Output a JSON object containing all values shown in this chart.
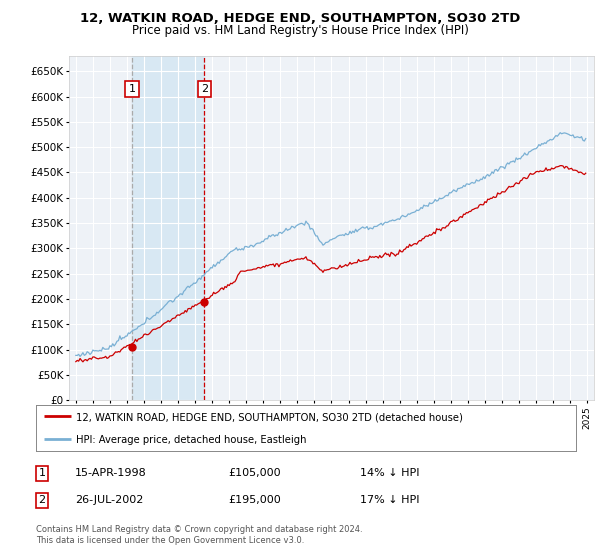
{
  "title": "12, WATKIN ROAD, HEDGE END, SOUTHAMPTON, SO30 2TD",
  "subtitle": "Price paid vs. HM Land Registry's House Price Index (HPI)",
  "legend_line1": "12, WATKIN ROAD, HEDGE END, SOUTHAMPTON, SO30 2TD (detached house)",
  "legend_line2": "HPI: Average price, detached house, Eastleigh",
  "transaction1_date": "15-APR-1998",
  "transaction1_price": 105000,
  "transaction1_hpi": "14% ↓ HPI",
  "transaction2_date": "26-JUL-2002",
  "transaction2_price": 195000,
  "transaction2_hpi": "17% ↓ HPI",
  "footnote1": "Contains HM Land Registry data © Crown copyright and database right 2024.",
  "footnote2": "This data is licensed under the Open Government Licence v3.0.",
  "ylim": [
    0,
    680000
  ],
  "yticks": [
    0,
    50000,
    100000,
    150000,
    200000,
    250000,
    300000,
    350000,
    400000,
    450000,
    500000,
    550000,
    600000,
    650000
  ],
  "price_color": "#cc0000",
  "hpi_color": "#7ab0d4",
  "bg_color": "#eef2f7",
  "highlight_color": "#d8e8f3",
  "grid_color": "#ffffff",
  "vline1_color": "#aaaaaa",
  "vline2_color": "#cc0000"
}
